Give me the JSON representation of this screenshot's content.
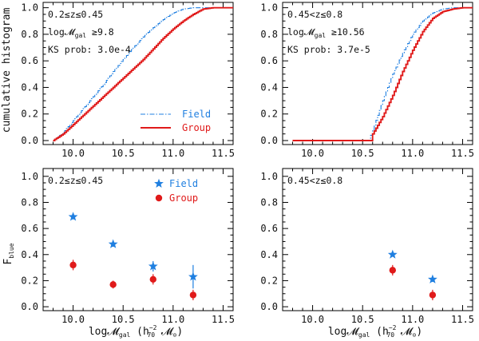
{
  "colors": {
    "field": "#1f7fe0",
    "group": "#e01a1a"
  },
  "labels": {
    "y_top": "cumulative histogram",
    "y_bottom": "F_blue",
    "x_bottom": "log𝓜_gal (h_70^-2 𝓜_⊙)"
  },
  "legend": {
    "field": "Field",
    "group": "Group"
  },
  "chart_data": [
    {
      "type": "line",
      "panel": "top-left",
      "annotations": [
        "0.2≤z≤0.45",
        "log𝓜_gal ≥9.8",
        "KS prob: 3.0e-4"
      ],
      "xlim": [
        9.7,
        11.6
      ],
      "ylim": [
        -0.03,
        1.04
      ],
      "xticks": [
        10.0,
        10.5,
        11.0,
        11.5
      ],
      "yticks": [
        0.0,
        0.2,
        0.4,
        0.6,
        0.8,
        1.0
      ],
      "legend_placement": "lower-right",
      "series": [
        {
          "name": "Field",
          "x": [
            9.8,
            9.9,
            10.0,
            10.1,
            10.2,
            10.3,
            10.4,
            10.5,
            10.6,
            10.7,
            10.8,
            10.9,
            11.0,
            11.1,
            11.2,
            11.3,
            11.6
          ],
          "y": [
            0.0,
            0.06,
            0.15,
            0.24,
            0.33,
            0.42,
            0.52,
            0.61,
            0.7,
            0.78,
            0.85,
            0.91,
            0.96,
            0.99,
            1.0,
            1.0,
            1.0
          ]
        },
        {
          "name": "Group",
          "x": [
            9.8,
            9.9,
            10.0,
            10.1,
            10.2,
            10.3,
            10.4,
            10.5,
            10.6,
            10.7,
            10.8,
            10.9,
            11.0,
            11.1,
            11.2,
            11.3,
            11.4,
            11.6
          ],
          "y": [
            0.0,
            0.05,
            0.12,
            0.19,
            0.26,
            0.33,
            0.4,
            0.47,
            0.54,
            0.61,
            0.69,
            0.77,
            0.84,
            0.9,
            0.95,
            0.99,
            1.0,
            1.0
          ]
        }
      ]
    },
    {
      "type": "line",
      "panel": "top-right",
      "annotations": [
        "0.45<z≤0.8",
        "log𝓜_gal ≥10.56",
        "KS prob: 3.7e-5"
      ],
      "xlim": [
        9.7,
        11.6
      ],
      "ylim": [
        -0.03,
        1.04
      ],
      "xticks": [
        10.0,
        10.5,
        11.0,
        11.5
      ],
      "yticks": [
        0.0,
        0.2,
        0.4,
        0.6,
        0.8,
        1.0
      ],
      "series": [
        {
          "name": "Field",
          "x": [
            9.8,
            10.56,
            10.6,
            10.7,
            10.8,
            10.9,
            11.0,
            11.1,
            11.2,
            11.3,
            11.4,
            11.6
          ],
          "y": [
            0.0,
            0.0,
            0.08,
            0.3,
            0.5,
            0.66,
            0.8,
            0.9,
            0.96,
            0.99,
            1.0,
            1.0
          ]
        },
        {
          "name": "Group",
          "x": [
            9.8,
            10.58,
            10.6,
            10.7,
            10.8,
            10.9,
            11.0,
            11.1,
            11.2,
            11.3,
            11.4,
            11.5,
            11.6
          ],
          "y": [
            0.0,
            0.0,
            0.05,
            0.18,
            0.34,
            0.52,
            0.68,
            0.82,
            0.92,
            0.97,
            0.99,
            1.0,
            1.0
          ]
        }
      ]
    },
    {
      "type": "scatter",
      "panel": "bottom-left",
      "annotations": [
        "0.2≤z≤0.45"
      ],
      "xlim": [
        9.7,
        11.6
      ],
      "ylim": [
        -0.03,
        1.06
      ],
      "xticks": [
        10.0,
        10.5,
        11.0,
        11.5
      ],
      "yticks": [
        0.0,
        0.2,
        0.4,
        0.6,
        0.8,
        1.0
      ],
      "legend_placement": "top-right",
      "series": [
        {
          "name": "Field",
          "x": [
            10.0,
            10.4,
            10.8,
            11.2
          ],
          "y": [
            0.69,
            0.48,
            0.31,
            0.23
          ],
          "err": [
            0.02,
            0.02,
            0.04,
            0.09
          ]
        },
        {
          "name": "Group",
          "x": [
            10.0,
            10.4,
            10.8,
            11.2
          ],
          "y": [
            0.32,
            0.17,
            0.21,
            0.09
          ],
          "err": [
            0.04,
            0.03,
            0.04,
            0.04
          ]
        }
      ]
    },
    {
      "type": "scatter",
      "panel": "bottom-right",
      "annotations": [
        "0.45<z≤0.8"
      ],
      "xlim": [
        9.7,
        11.6
      ],
      "ylim": [
        -0.03,
        1.06
      ],
      "xticks": [
        10.0,
        10.5,
        11.0,
        11.5
      ],
      "yticks": [
        0.0,
        0.2,
        0.4,
        0.6,
        0.8,
        1.0
      ],
      "series": [
        {
          "name": "Field",
          "x": [
            10.8,
            11.2
          ],
          "y": [
            0.4,
            0.21
          ],
          "err": [
            0.01,
            0.02
          ]
        },
        {
          "name": "Group",
          "x": [
            10.8,
            11.2
          ],
          "y": [
            0.28,
            0.09
          ],
          "err": [
            0.04,
            0.04
          ]
        }
      ]
    }
  ]
}
